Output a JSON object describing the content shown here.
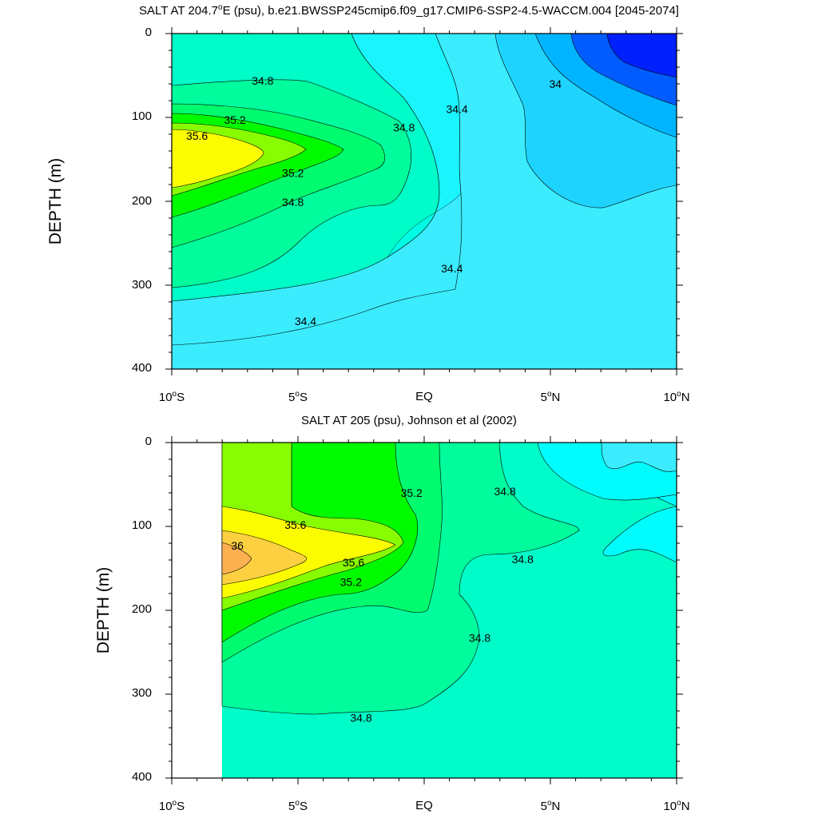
{
  "chart_data": [
    {
      "type": "contour",
      "title": "SALT AT 204.7°E (psu), b.e21.BWSSP245cmip6.f09_g17.CMIP6-SSP2-4.5-WACCM.004 [2045-2074]",
      "title_main": "SALT AT 204.7",
      "title_deg": "o",
      "title_rest": "E (psu), b.e21.BWSSP245cmip6.f09_g17.CMIP6-SSP2-4.5-WACCM.004 [2045-2074]",
      "ylabel": "DEPTH (m)",
      "xlim": [
        -10,
        10
      ],
      "ylim": [
        0,
        400
      ],
      "y_ticks": [
        "0",
        "100",
        "200",
        "300",
        "400"
      ],
      "x_ticks": [
        {
          "value": -10,
          "num": "10",
          "deg": "o",
          "hem": "S"
        },
        {
          "value": -5,
          "num": "5",
          "deg": "o",
          "hem": "S"
        },
        {
          "value": 0,
          "num": "EQ",
          "deg": "",
          "hem": ""
        },
        {
          "value": 5,
          "num": "5",
          "deg": "o",
          "hem": "N"
        },
        {
          "value": 10,
          "num": "10",
          "deg": "o",
          "hem": "N"
        }
      ],
      "contour_labels": [
        {
          "text": "34.8",
          "lat": -6.4,
          "depth": 56
        },
        {
          "text": "35.2",
          "lat": -7.5,
          "depth": 103
        },
        {
          "text": "35.6",
          "lat": -9.0,
          "depth": 122
        },
        {
          "text": "35.2",
          "lat": -5.2,
          "depth": 166
        },
        {
          "text": "34.8",
          "lat": -5.2,
          "depth": 201
        },
        {
          "text": "34.8",
          "lat": -0.8,
          "depth": 112
        },
        {
          "text": "34.4",
          "lat": 1.3,
          "depth": 90
        },
        {
          "text": "34.4",
          "lat": 1.1,
          "depth": 280
        },
        {
          "text": "34.4",
          "lat": -4.7,
          "depth": 343
        },
        {
          "text": "34",
          "lat": 5.2,
          "depth": 60
        }
      ]
    },
    {
      "type": "contour",
      "title": "SALT AT 205 (psu), Johnson et al (2002)",
      "ylabel": "DEPTH (m)",
      "xlim": [
        -10,
        10
      ],
      "ylim": [
        0,
        400
      ],
      "data_lat_start": -8,
      "y_ticks": [
        "0",
        "100",
        "200",
        "300",
        "400"
      ],
      "x_ticks": [
        {
          "value": -10,
          "num": "10",
          "deg": "o",
          "hem": "S"
        },
        {
          "value": -5,
          "num": "5",
          "deg": "o",
          "hem": "S"
        },
        {
          "value": 0,
          "num": "EQ",
          "deg": "",
          "hem": ""
        },
        {
          "value": 5,
          "num": "5",
          "deg": "o",
          "hem": "N"
        },
        {
          "value": 10,
          "num": "10",
          "deg": "o",
          "hem": "N"
        }
      ],
      "contour_labels": [
        {
          "text": "35.2",
          "lat": -0.5,
          "depth": 60
        },
        {
          "text": "34.8",
          "lat": 3.2,
          "depth": 58
        },
        {
          "text": "35.6",
          "lat": -5.1,
          "depth": 98
        },
        {
          "text": "36",
          "lat": -7.4,
          "depth": 123
        },
        {
          "text": "35.6",
          "lat": -2.8,
          "depth": 143
        },
        {
          "text": "35.2",
          "lat": -2.9,
          "depth": 166
        },
        {
          "text": "34.8",
          "lat": 3.9,
          "depth": 139
        },
        {
          "text": "34.8",
          "lat": 2.2,
          "depth": 233
        },
        {
          "text": "34.8",
          "lat": -2.5,
          "depth": 328
        }
      ]
    }
  ],
  "colors": {
    "s34_0": "#000cfc",
    "s34_1": "#005cff",
    "s34_2": "#00b4ff",
    "s34_3": "#1ed4ff",
    "s34_4": "#3aecfd",
    "s34_5": "#00fcfc",
    "s34_6": "#00fcc8",
    "s34_8": "#00fc9c",
    "s35_0": "#00fc6e",
    "s35_2": "#00fb00",
    "s35_4": "#88fc00",
    "s35_6": "#fcfc00",
    "s35_8": "#fcd040",
    "s36_0": "#fcb050"
  }
}
